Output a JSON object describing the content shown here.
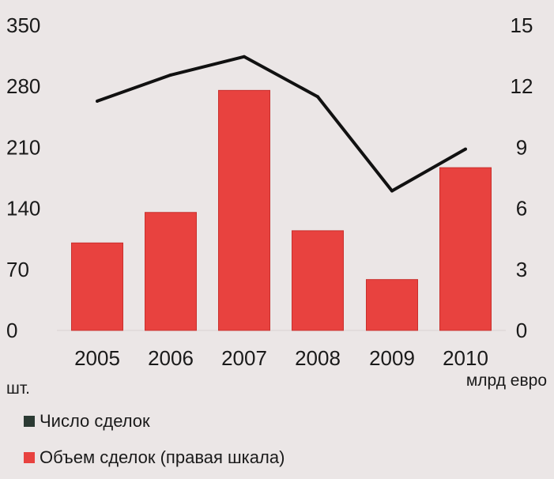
{
  "chart_data": {
    "type": "bar+line",
    "categories": [
      "2005",
      "2006",
      "2007",
      "2008",
      "2009",
      "2010"
    ],
    "series": [
      {
        "name": "Объем сделок (правая шкала)",
        "type": "bar",
        "axis": "right",
        "values": [
          4.3,
          5.8,
          11.8,
          4.9,
          2.5,
          8.0
        ],
        "color": "#e8423f"
      },
      {
        "name": "Число сделок",
        "type": "line",
        "axis": "left",
        "values": [
          263,
          293,
          314,
          268,
          160,
          208
        ],
        "color": "#111111"
      }
    ],
    "y_left": {
      "ticks": [
        "350",
        "280",
        "210",
        "140",
        "70",
        "0"
      ],
      "range": [
        0,
        350
      ],
      "unit": "шт."
    },
    "y_right": {
      "ticks": [
        "15",
        "12",
        "9",
        "6",
        "3",
        "0"
      ],
      "range": [
        0,
        15
      ],
      "unit": "млрд евро"
    },
    "grid": false
  },
  "legend": {
    "line_label": "Число сделок",
    "bar_label": "Объем сделок (правая шкала)",
    "line_color": "#2b3a33",
    "bar_color": "#e8423f"
  }
}
